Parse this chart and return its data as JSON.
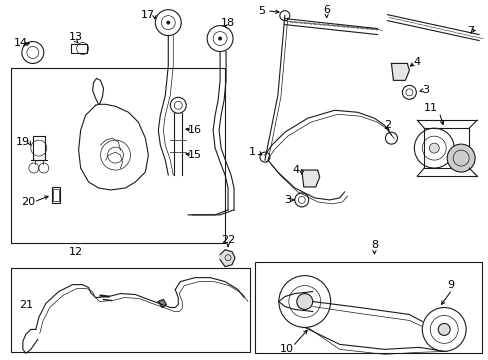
{
  "bg_color": "#ffffff",
  "line_color": "#1a1a1a",
  "fig_w": 4.89,
  "fig_h": 3.6,
  "dpi": 100
}
